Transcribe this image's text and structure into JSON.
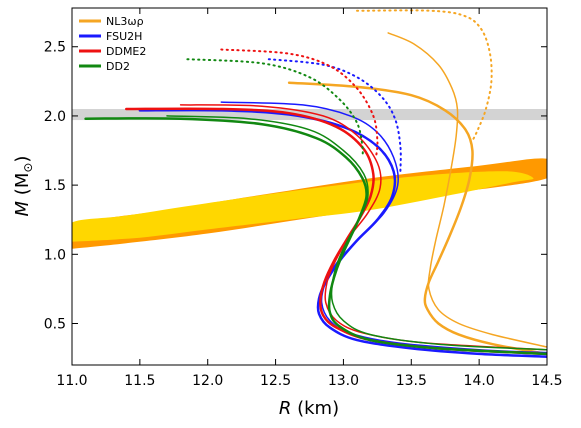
{
  "chart_data": {
    "type": "line",
    "xlabel": "R (km)",
    "ylabel": "M (M⊙)",
    "xlim": [
      11.0,
      14.5
    ],
    "ylim": [
      0.2,
      2.78
    ],
    "xticks": [
      11.0,
      11.5,
      12.0,
      12.5,
      13.0,
      13.5,
      14.0,
      14.5
    ],
    "yticks": [
      0.5,
      1.0,
      1.5,
      2.0,
      2.5
    ],
    "xtick_labels": [
      "11.0",
      "11.5",
      "12.0",
      "12.5",
      "13.0",
      "13.5",
      "14.0",
      "14.5"
    ],
    "ytick_labels": [
      "0.5",
      "1.0",
      "1.5",
      "2.0",
      "2.5"
    ],
    "grid": false,
    "legend_position": "top-left",
    "bands": [
      {
        "kind": "horizontal",
        "y": [
          1.97,
          2.05
        ],
        "color": "#d3d3d3"
      }
    ],
    "ellipses": [
      {
        "color": "#ff9900",
        "points": [
          [
            11.0,
            1.04
          ],
          [
            11.4,
            1.08
          ],
          [
            12.0,
            1.15
          ],
          [
            12.6,
            1.24
          ],
          [
            13.2,
            1.33
          ],
          [
            13.8,
            1.44
          ],
          [
            14.5,
            1.55
          ],
          [
            14.5,
            1.69
          ],
          [
            14.0,
            1.64
          ],
          [
            13.2,
            1.55
          ],
          [
            12.4,
            1.43
          ],
          [
            11.7,
            1.32
          ],
          [
            11.0,
            1.21
          ]
        ]
      },
      {
        "color": "#ffd700",
        "points": [
          [
            11.0,
            1.09
          ],
          [
            11.5,
            1.12
          ],
          [
            12.0,
            1.18
          ],
          [
            12.6,
            1.25
          ],
          [
            13.2,
            1.32
          ],
          [
            13.8,
            1.43
          ],
          [
            14.25,
            1.52
          ],
          [
            14.4,
            1.55
          ],
          [
            14.2,
            1.6
          ],
          [
            13.6,
            1.57
          ],
          [
            12.8,
            1.48
          ],
          [
            12.0,
            1.37
          ],
          [
            11.4,
            1.28
          ],
          [
            11.0,
            1.23
          ]
        ]
      }
    ],
    "series": [
      {
        "name": "NL3ωρ",
        "color": "#f5a623",
        "curves": [
          {
            "style": "solid",
            "width": 2.5,
            "points": [
              [
                12.6,
                2.24
              ],
              [
                13.1,
                2.21
              ],
              [
                13.5,
                2.15
              ],
              [
                13.75,
                2.04
              ],
              [
                13.9,
                1.9
              ],
              [
                13.95,
                1.75
              ],
              [
                13.93,
                1.55
              ],
              [
                13.87,
                1.35
              ],
              [
                13.79,
                1.15
              ],
              [
                13.7,
                0.95
              ],
              [
                13.63,
                0.8
              ],
              [
                13.6,
                0.68
              ],
              [
                13.62,
                0.6
              ],
              [
                13.7,
                0.5
              ],
              [
                13.85,
                0.42
              ],
              [
                14.1,
                0.35
              ],
              [
                14.5,
                0.28
              ]
            ]
          },
          {
            "style": "solid",
            "width": 1.5,
            "points": [
              [
                13.33,
                2.6
              ],
              [
                13.52,
                2.52
              ],
              [
                13.7,
                2.37
              ],
              [
                13.8,
                2.2
              ],
              [
                13.84,
                2.05
              ],
              [
                13.83,
                1.85
              ],
              [
                13.79,
                1.6
              ],
              [
                13.74,
                1.35
              ],
              [
                13.68,
                1.1
              ],
              [
                13.64,
                0.9
              ],
              [
                13.63,
                0.75
              ],
              [
                13.7,
                0.6
              ],
              [
                13.85,
                0.5
              ],
              [
                14.1,
                0.42
              ],
              [
                14.5,
                0.33
              ]
            ]
          },
          {
            "style": "dotted",
            "width": 2,
            "points": [
              [
                13.1,
                2.76
              ],
              [
                13.65,
                2.76
              ],
              [
                13.9,
                2.72
              ],
              [
                14.02,
                2.62
              ],
              [
                14.08,
                2.45
              ],
              [
                14.09,
                2.25
              ],
              [
                14.05,
                2.05
              ],
              [
                13.99,
                1.9
              ],
              [
                13.95,
                1.82
              ]
            ]
          }
        ]
      },
      {
        "name": "FSU2H",
        "color": "#1a1aff",
        "curves": [
          {
            "style": "solid",
            "width": 2.5,
            "points": [
              [
                11.5,
                2.04
              ],
              [
                12.1,
                2.04
              ],
              [
                12.6,
                2.01
              ],
              [
                13.0,
                1.92
              ],
              [
                13.25,
                1.78
              ],
              [
                13.37,
                1.6
              ],
              [
                13.36,
                1.42
              ],
              [
                13.25,
                1.25
              ],
              [
                13.1,
                1.1
              ],
              [
                12.97,
                0.95
              ],
              [
                12.87,
                0.8
              ],
              [
                12.82,
                0.68
              ],
              [
                12.82,
                0.57
              ],
              [
                12.9,
                0.47
              ],
              [
                13.1,
                0.38
              ],
              [
                13.5,
                0.32
              ],
              [
                14.0,
                0.28
              ],
              [
                14.5,
                0.26
              ]
            ]
          },
          {
            "style": "solid",
            "width": 1.5,
            "points": [
              [
                12.1,
                2.1
              ],
              [
                12.7,
                2.08
              ],
              [
                13.05,
                2.0
              ],
              [
                13.25,
                1.88
              ],
              [
                13.37,
                1.7
              ],
              [
                13.4,
                1.5
              ],
              [
                13.3,
                1.3
              ],
              [
                13.12,
                1.12
              ],
              [
                12.96,
                0.95
              ],
              [
                12.87,
                0.8
              ],
              [
                12.84,
                0.65
              ],
              [
                12.9,
                0.52
              ],
              [
                13.05,
                0.43
              ],
              [
                13.4,
                0.36
              ],
              [
                14.0,
                0.31
              ],
              [
                14.5,
                0.29
              ]
            ]
          },
          {
            "style": "dotted",
            "width": 2,
            "points": [
              [
                12.45,
                2.41
              ],
              [
                12.85,
                2.37
              ],
              [
                13.1,
                2.28
              ],
              [
                13.28,
                2.14
              ],
              [
                13.38,
                1.98
              ],
              [
                13.42,
                1.78
              ],
              [
                13.42,
                1.6
              ]
            ]
          }
        ]
      },
      {
        "name": "DDME2",
        "color": "#ee1111",
        "curves": [
          {
            "style": "solid",
            "width": 2.5,
            "points": [
              [
                11.4,
                2.05
              ],
              [
                12.1,
                2.05
              ],
              [
                12.6,
                2.02
              ],
              [
                12.95,
                1.92
              ],
              [
                13.15,
                1.76
              ],
              [
                13.22,
                1.58
              ],
              [
                13.2,
                1.42
              ],
              [
                13.12,
                1.26
              ],
              [
                13.02,
                1.1
              ],
              [
                12.93,
                0.95
              ],
              [
                12.86,
                0.8
              ],
              [
                12.83,
                0.67
              ],
              [
                12.85,
                0.56
              ],
              [
                12.95,
                0.47
              ],
              [
                13.2,
                0.38
              ],
              [
                13.7,
                0.32
              ],
              [
                14.5,
                0.28
              ]
            ]
          },
          {
            "style": "solid",
            "width": 1.5,
            "points": [
              [
                11.8,
                2.08
              ],
              [
                12.4,
                2.07
              ],
              [
                12.85,
                2.0
              ],
              [
                13.1,
                1.86
              ],
              [
                13.25,
                1.66
              ],
              [
                13.27,
                1.48
              ],
              [
                13.18,
                1.3
              ],
              [
                13.04,
                1.12
              ],
              [
                12.94,
                0.95
              ],
              [
                12.88,
                0.8
              ],
              [
                12.87,
                0.65
              ],
              [
                12.95,
                0.52
              ],
              [
                13.15,
                0.43
              ],
              [
                13.6,
                0.36
              ],
              [
                14.5,
                0.31
              ]
            ]
          },
          {
            "style": "dotted",
            "width": 2,
            "points": [
              [
                12.1,
                2.48
              ],
              [
                12.6,
                2.45
              ],
              [
                12.9,
                2.36
              ],
              [
                13.1,
                2.2
              ],
              [
                13.22,
                2.0
              ],
              [
                13.25,
                1.82
              ],
              [
                13.24,
                1.7
              ]
            ]
          }
        ]
      },
      {
        "name": "DD2",
        "color": "#118811",
        "curves": [
          {
            "style": "solid",
            "width": 2.5,
            "points": [
              [
                11.1,
                1.98
              ],
              [
                11.8,
                1.98
              ],
              [
                12.4,
                1.94
              ],
              [
                12.8,
                1.84
              ],
              [
                13.02,
                1.7
              ],
              [
                13.14,
                1.55
              ],
              [
                13.17,
                1.42
              ],
              [
                13.12,
                1.27
              ],
              [
                13.05,
                1.12
              ],
              [
                12.98,
                0.97
              ],
              [
                12.93,
                0.83
              ],
              [
                12.9,
                0.7
              ],
              [
                12.9,
                0.58
              ],
              [
                12.97,
                0.48
              ],
              [
                13.2,
                0.38
              ],
              [
                13.7,
                0.32
              ],
              [
                14.5,
                0.28
              ]
            ]
          },
          {
            "style": "solid",
            "width": 1.5,
            "points": [
              [
                11.7,
                2.0
              ],
              [
                12.3,
                1.98
              ],
              [
                12.75,
                1.9
              ],
              [
                13.0,
                1.75
              ],
              [
                13.15,
                1.58
              ],
              [
                13.18,
                1.42
              ],
              [
                13.12,
                1.26
              ],
              [
                13.03,
                1.1
              ],
              [
                12.96,
                0.95
              ],
              [
                12.92,
                0.8
              ],
              [
                12.92,
                0.65
              ],
              [
                13.0,
                0.52
              ],
              [
                13.2,
                0.42
              ],
              [
                13.7,
                0.35
              ],
              [
                14.5,
                0.31
              ]
            ]
          },
          {
            "style": "dotted",
            "width": 2,
            "points": [
              [
                11.85,
                2.41
              ],
              [
                12.4,
                2.38
              ],
              [
                12.75,
                2.28
              ],
              [
                12.97,
                2.12
              ],
              [
                13.1,
                1.95
              ],
              [
                13.14,
                1.78
              ],
              [
                13.14,
                1.7
              ]
            ]
          }
        ]
      }
    ]
  }
}
